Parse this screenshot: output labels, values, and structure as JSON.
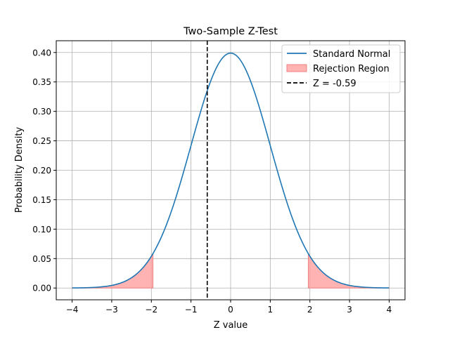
{
  "chart_data": {
    "type": "line",
    "title": "Two-Sample Z-Test",
    "xlabel": "Z value",
    "ylabel": "Probability Density",
    "xlim": [
      -4.4,
      4.4
    ],
    "ylim": [
      -0.02,
      0.42
    ],
    "xticks": [
      -4,
      -3,
      -2,
      -1,
      0,
      1,
      2,
      3,
      4
    ],
    "xtick_labels": [
      "−4",
      "−3",
      "−2",
      "−1",
      "0",
      "1",
      "2",
      "3",
      "4"
    ],
    "yticks": [
      0.0,
      0.05,
      0.1,
      0.15,
      0.2,
      0.25,
      0.3,
      0.35,
      0.4
    ],
    "ytick_labels": [
      "0.00",
      "0.05",
      "0.10",
      "0.15",
      "0.20",
      "0.25",
      "0.30",
      "0.35",
      "0.40"
    ],
    "grid": true,
    "legend_position": "top-right",
    "series": [
      {
        "name": "Standard Normal",
        "kind": "line",
        "color": "#1f77b4",
        "x": [
          -4.0,
          -3.5,
          -3.0,
          -2.5,
          -2.0,
          -1.5,
          -1.0,
          -0.5,
          0.0,
          0.5,
          1.0,
          1.5,
          2.0,
          2.5,
          3.0,
          3.5,
          4.0
        ],
        "y": [
          0.0001,
          0.0009,
          0.0044,
          0.0175,
          0.054,
          0.1295,
          0.242,
          0.3521,
          0.3989,
          0.3521,
          0.242,
          0.1295,
          0.054,
          0.0175,
          0.0044,
          0.0009,
          0.0001
        ]
      },
      {
        "name": "Rejection Region",
        "kind": "fill",
        "color": "#ff9999",
        "regions": [
          {
            "x_from": -4.0,
            "x_to": -1.96
          },
          {
            "x_from": 1.96,
            "x_to": 4.0
          }
        ]
      },
      {
        "name": "Z = -0.59",
        "kind": "vline",
        "color": "#000000",
        "x": -0.59
      }
    ]
  }
}
